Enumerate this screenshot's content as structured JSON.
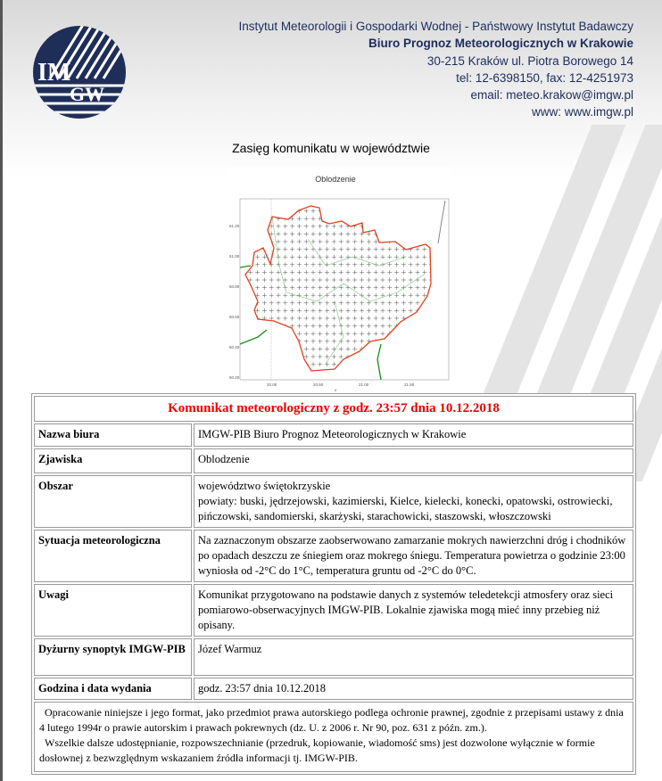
{
  "header": {
    "institute": "Instytut Meteorologii i Gospodarki Wodnej - Państwowy Instytut Badawczy",
    "office": "Biuro Prognoz Meteorologicznych w Krakowie",
    "address": "30-215 Kraków ul. Piotra Borowego 14",
    "phone": "tel: 12-6398150, fax: 12-4251973",
    "email": "email: meteo.krakow@imgw.pl",
    "www": "www: www.imgw.pl",
    "logo_text": "IMGW"
  },
  "range_title": "Zasięg komunikatu w województwie",
  "map": {
    "title": "Oblodzenie",
    "y_ticks": [
      "51.20",
      "51.00",
      "50.80",
      "50.60",
      "50.40",
      "50.20"
    ],
    "x_ticks": [
      "20.00",
      "20.50",
      "21.00",
      "21.50"
    ],
    "x_label": "x",
    "colors": {
      "border": "#e04020",
      "districts": "#7cc47c",
      "neighbor": "#1a8a1a"
    }
  },
  "bulletin": {
    "title": "Komunikat meteorologiczny z godz. 23:57 dnia 10.12.2018",
    "rows": [
      {
        "label": "Nazwa biura",
        "value": "IMGW-PIB Biuro Prognoz Meteorologicznych w Krakowie"
      },
      {
        "label": "Zjawiska",
        "value": "Oblodzenie"
      },
      {
        "label": "Obszar",
        "value": "województwo świętokrzyskie",
        "value2": "powiaty: buski, jędrzejowski, kazimierski, Kielce, kielecki, konecki, opatowski, ostrowiecki, pińczowski, sandomierski, skarżyski, starachowicki, staszowski, włoszczowski"
      },
      {
        "label": "Sytuacja meteorologiczna",
        "value": "Na zaznaczonym obszarze zaobserwowano zamarzanie mokrych nawierzchni dróg i chodników po opadach deszczu ze śniegiem oraz mokrego śniegu. Temperatura powietrza o godzinie 23:00 wyniosła od -2°C do 1°C, temperatura gruntu od -2°C do 0°C."
      },
      {
        "label": "Uwagi",
        "value": "Komunikat przygotowano na podstawie danych z systemów teledetekcji atmosfery oraz sieci pomiarowo-obserwacyjnych IMGW-PIB. Lokalnie zjawiska mogą mieć inny przebieg niż opisany."
      },
      {
        "label": "Dyżurny synoptyk IMGW-PIB",
        "value": "Józef Warmuz"
      },
      {
        "label": "Godzina i data wydania",
        "value": "godz. 23:57 dnia 10.12.2018"
      }
    ],
    "footer1": "Opracowanie niniejsze i jego format, jako przedmiot prawa autorskiego podlega ochronie prawnej, zgodnie z przepisami ustawy z dnia 4 lutego 1994r o prawie autorskim i prawach pokrewnych (dz. U. z 2006 r. Nr 90, poz. 631 z późn. zm.).",
    "footer2": "Wszelkie dalsze udostępnianie, rozpowszechnianie (przedruk, kopiowanie, wiadomość sms) jest dozwolone wyłącznie w formie dosłownej z bezwzględnym wskazaniem źródła informacji tj. IMGW-PIB."
  }
}
